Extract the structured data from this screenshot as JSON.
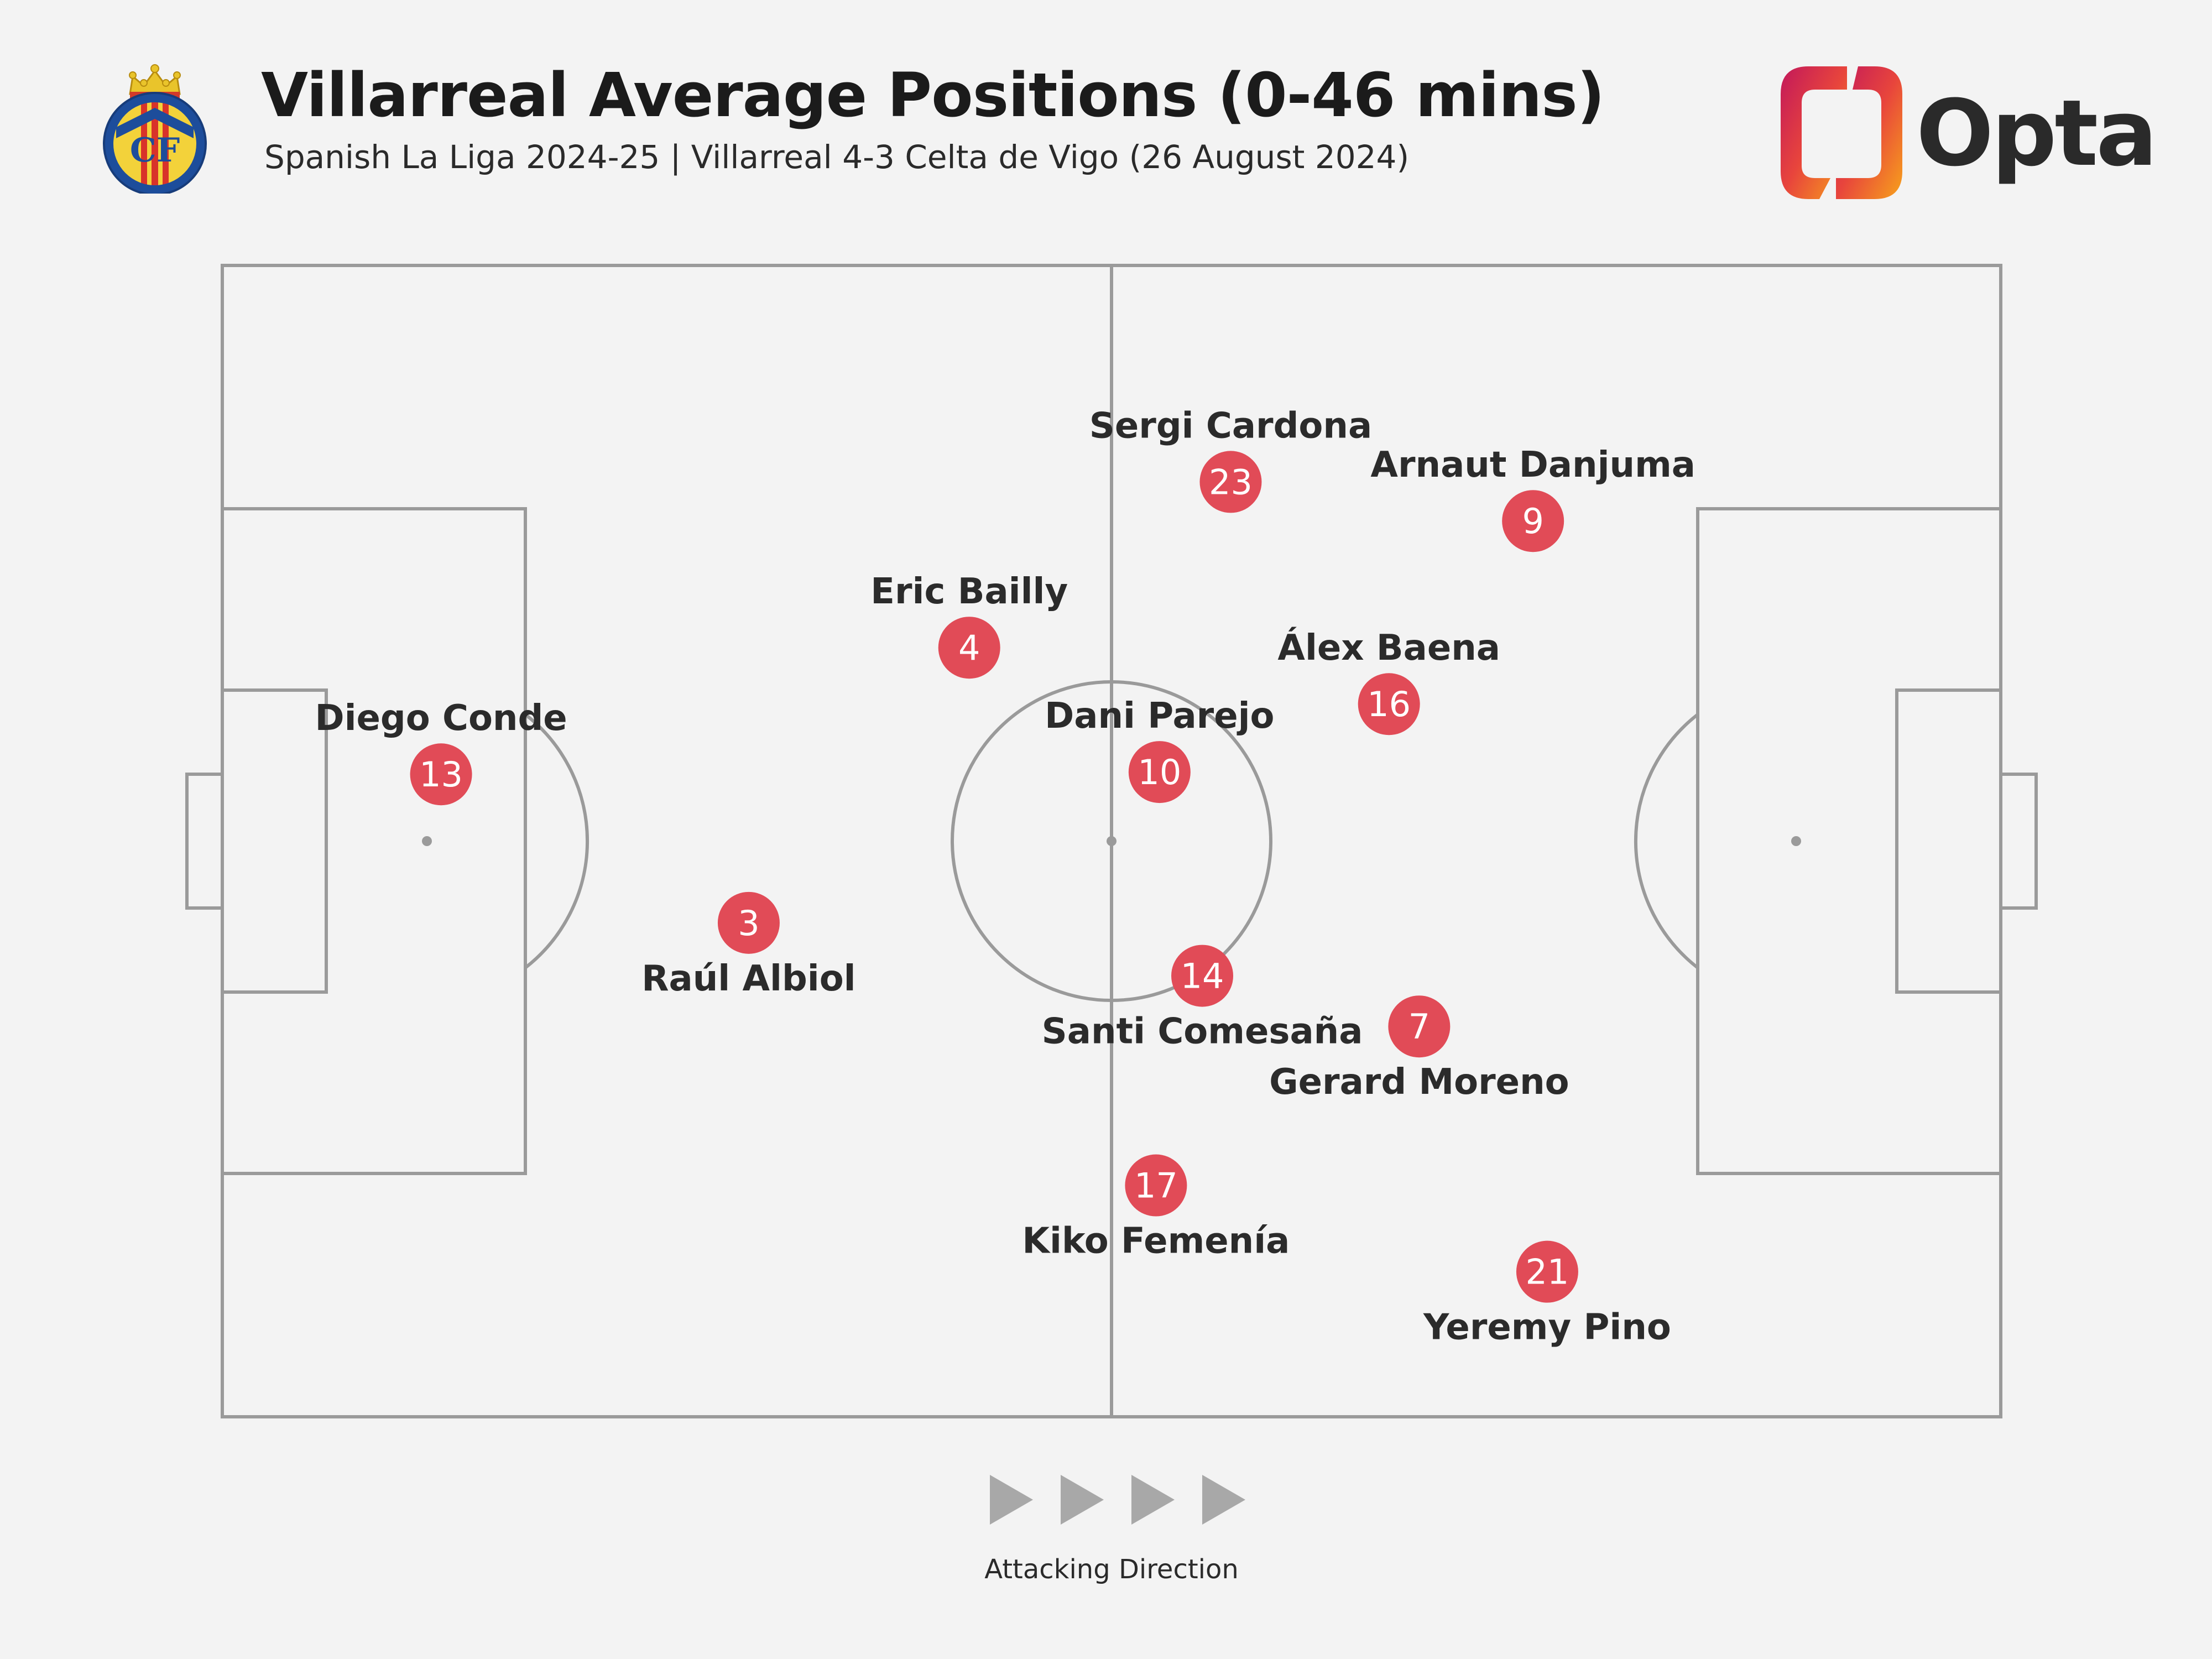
{
  "header": {
    "title": "Villarreal Average Positions (0-46 mins)",
    "subtitle": "Spanish La Liga 2024-25 | Villarreal 4-3 Celta de Vigo (26 August 2024)"
  },
  "logos": {
    "crest_icon": "villarreal-crest-icon",
    "crest_text": "CF",
    "opta_text": "Opta"
  },
  "colors": {
    "background": "#f3f3f3",
    "pitch_lines": "#9a9a9a",
    "marker": "#e14b57",
    "marker_text": "#ffffff",
    "arrow": "#a8a8a8"
  },
  "footer": {
    "attacking_direction": "Attacking Direction",
    "arrow_icon": "play-arrow-icon",
    "arrow_count": 4
  },
  "chart_data": {
    "type": "scatter",
    "x_range": [
      0,
      100
    ],
    "y_range": [
      0,
      100
    ],
    "players": [
      {
        "name": "Diego Conde",
        "number": "13",
        "x": 12.3,
        "y": 44.2,
        "label_pos": "above"
      },
      {
        "name": "Raúl Albiol",
        "number": "3",
        "x": 29.6,
        "y": 57.1,
        "label_pos": "below"
      },
      {
        "name": "Eric Bailly",
        "number": "4",
        "x": 42.0,
        "y": 33.2,
        "label_pos": "above"
      },
      {
        "name": "Sergi Cardona",
        "number": "23",
        "x": 56.7,
        "y": 18.8,
        "label_pos": "above"
      },
      {
        "name": "Dani Parejo",
        "number": "10",
        "x": 52.7,
        "y": 44.0,
        "label_pos": "above"
      },
      {
        "name": "Santi Comesaña",
        "number": "14",
        "x": 55.1,
        "y": 61.7,
        "label_pos": "below"
      },
      {
        "name": "Kiko Femenía",
        "number": "17",
        "x": 52.5,
        "y": 79.9,
        "label_pos": "below"
      },
      {
        "name": "Arnaut Danjuma",
        "number": "9",
        "x": 73.7,
        "y": 22.2,
        "label_pos": "above"
      },
      {
        "name": "Álex Baena",
        "number": "16",
        "x": 65.6,
        "y": 38.1,
        "label_pos": "above"
      },
      {
        "name": "Gerard Moreno",
        "number": "7",
        "x": 67.3,
        "y": 66.1,
        "label_pos": "below"
      },
      {
        "name": "Yeremy Pino",
        "number": "21",
        "x": 74.5,
        "y": 87.4,
        "label_pos": "below"
      }
    ]
  }
}
